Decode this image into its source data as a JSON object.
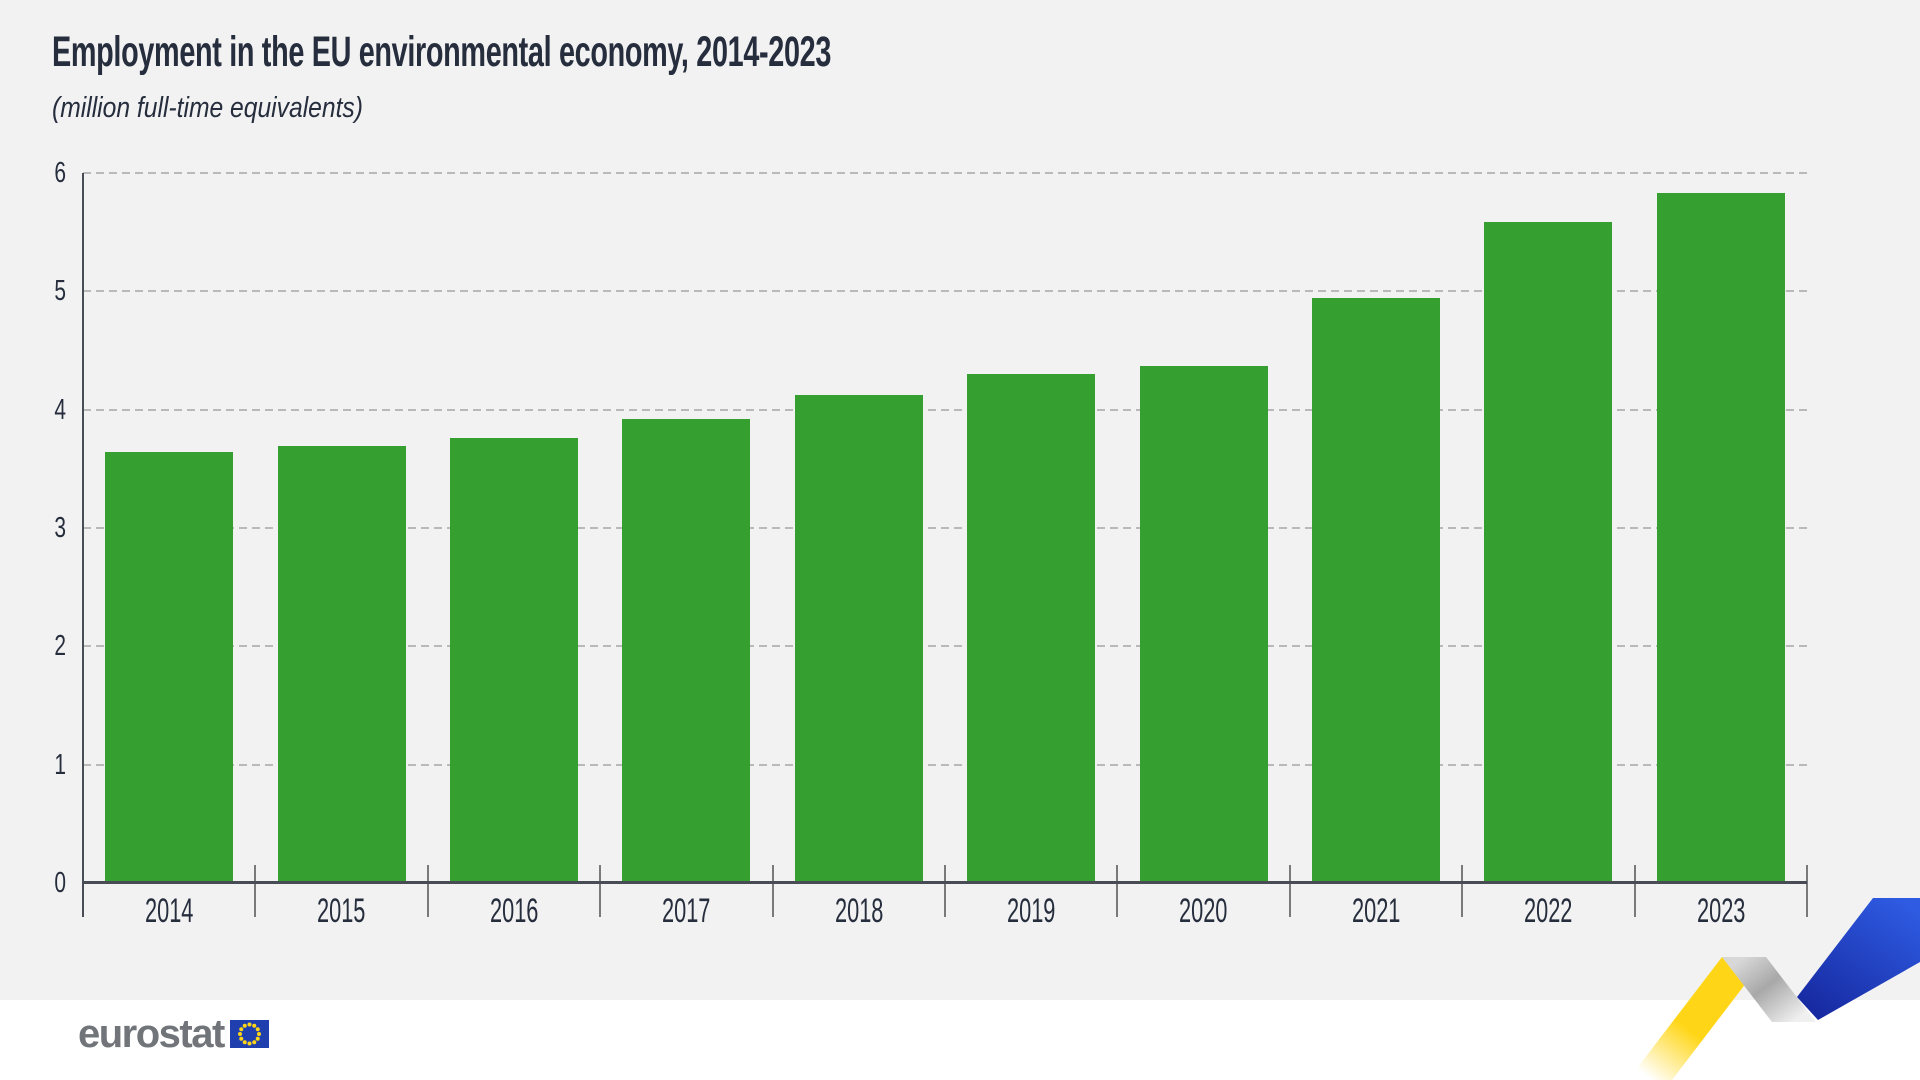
{
  "header": {
    "title": "Employment in the EU environmental economy, 2014-2023",
    "subtitle": "(million full-time equivalents)"
  },
  "chart_data": {
    "type": "bar",
    "title": "Employment in the EU environmental economy, 2014-2023",
    "subtitle": "(million full-time equivalents)",
    "categories": [
      "2014",
      "2015",
      "2016",
      "2017",
      "2018",
      "2019",
      "2020",
      "2021",
      "2022",
      "2023"
    ],
    "values": [
      3.64,
      3.69,
      3.76,
      3.92,
      4.12,
      4.3,
      4.37,
      4.94,
      5.59,
      5.83
    ],
    "xlabel": "",
    "ylabel": "million full-time equivalents",
    "ylim": [
      0,
      6
    ],
    "yticks": [
      0,
      1,
      2,
      3,
      4,
      5,
      6
    ],
    "grid": "horizontal-dashed",
    "legend": "none",
    "bar_color": "#35a02f"
  },
  "footer": {
    "logo_text": "eurostat",
    "flag_icon": "eu-flag-icon",
    "ribbon_icon": "eurostat-ribbon-graphic"
  },
  "colors": {
    "background": "#f2f2f2",
    "footer_background": "#ffffff",
    "bar": "#35a02f",
    "text": "#262d3d",
    "axis": "#474c55",
    "tick_mark": "#7a7a7a",
    "gridline": "#b9b9b9",
    "logo_gray": "#71757a",
    "eu_flag_blue": "#1e3fad",
    "star_yellow": "#ffd617",
    "ribbon_yellow": "#ffd617",
    "ribbon_gray_dark": "#a8a8a8",
    "ribbon_gray_light": "#f0f0f0",
    "ribbon_blue_dark": "#16289f",
    "ribbon_blue_light": "#2e5be2"
  }
}
